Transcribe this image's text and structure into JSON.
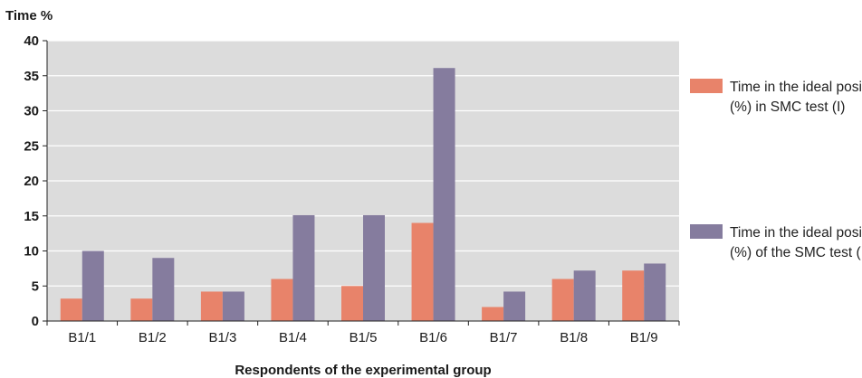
{
  "chart_data": {
    "type": "bar",
    "ylabel": "Time %",
    "xlabel": "Respondents of the experimental group",
    "categories": [
      "B1/1",
      "B1/2",
      "B1/3",
      "B1/4",
      "B1/5",
      "B1/6",
      "B1/7",
      "B1/8",
      "B1/9"
    ],
    "ylim": [
      0,
      40
    ],
    "yticks": [
      0,
      5,
      10,
      15,
      20,
      25,
      30,
      35,
      40
    ],
    "grid": true,
    "legend_position": "right",
    "series": [
      {
        "name": "Time in the ideal position (%) in SMC test (I)",
        "color": "#e8836a",
        "values": [
          3.2,
          3.2,
          4.2,
          6,
          5,
          14,
          2,
          6,
          7.2
        ]
      },
      {
        "name": "Time in the ideal position (%) of the SMC test (II)",
        "color": "#857c9e",
        "values": [
          10,
          9,
          4.2,
          15.1,
          15.1,
          36.1,
          4.2,
          7.2,
          8.2
        ]
      }
    ],
    "plot_background": "#dcdcdc"
  }
}
